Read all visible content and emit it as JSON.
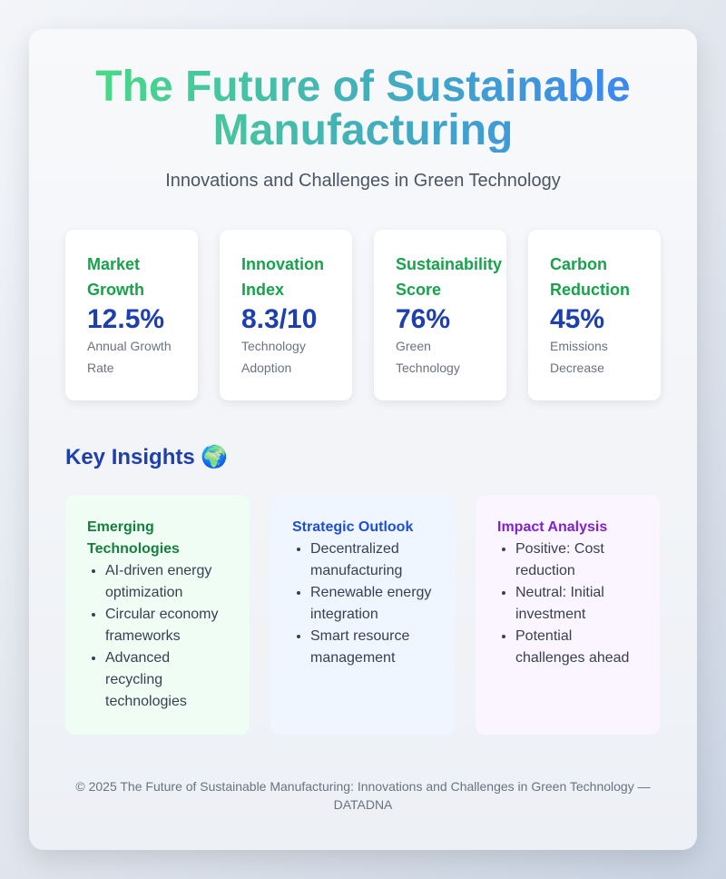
{
  "header": {
    "title": "The Future of Sustainable Manufacturing",
    "subtitle": "Innovations and Challenges in Green Technology"
  },
  "stats": [
    {
      "label": "Market Growth",
      "value": "12.5%",
      "description": "Annual Growth Rate"
    },
    {
      "label": "Innovation Index",
      "value": "8.3/10",
      "description": "Technology Adoption"
    },
    {
      "label": "Sustainability Score",
      "value": "76%",
      "description": "Green Technology"
    },
    {
      "label": "Carbon Reduction",
      "value": "45%",
      "description": "Emissions Decrease"
    }
  ],
  "insights": {
    "heading": "Key Insights 🌍",
    "cards": [
      {
        "title": "Emerging Technologies",
        "items": [
          "AI-driven energy optimization",
          "Circular economy frameworks",
          "Advanced recycling technologies"
        ]
      },
      {
        "title": "Strategic Outlook",
        "items": [
          "Decentralized manufacturing",
          "Renewable energy integration",
          "Smart resource management"
        ]
      },
      {
        "title": "Impact Analysis",
        "items": [
          "Positive: Cost reduction",
          "Neutral: Initial investment",
          "Potential challenges ahead"
        ]
      }
    ]
  },
  "footer": "© 2025 The Future of Sustainable Manufacturing: Innovations and Challenges in Green Technology — DATADNA"
}
